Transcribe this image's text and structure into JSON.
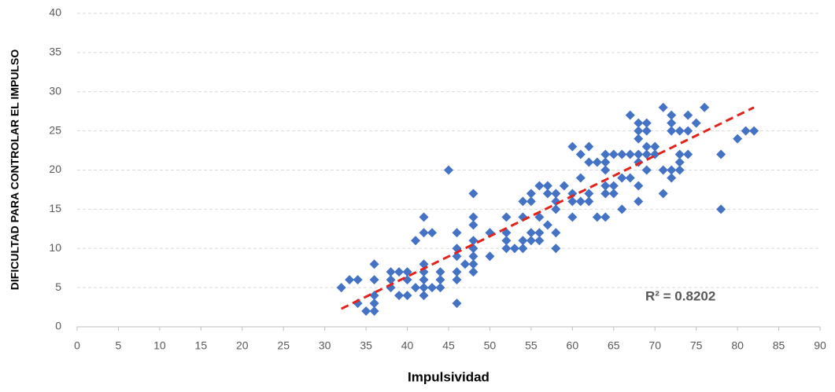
{
  "chart_data": {
    "type": "scatter",
    "x_label": "Impulsividad",
    "y_label": "DIFICULTAD PARA CONTROLAR EL IMPULSO",
    "annotation": "R² = 0.8202",
    "xlim": [
      0,
      90
    ],
    "xticks": [
      0,
      5,
      10,
      15,
      20,
      25,
      30,
      35,
      40,
      45,
      50,
      55,
      60,
      65,
      70,
      75,
      80,
      85,
      90
    ],
    "ylim": [
      0,
      40
    ],
    "yticks": [
      0,
      5,
      10,
      15,
      20,
      25,
      30,
      35,
      40
    ],
    "grid": true,
    "series": [
      {
        "color": "#4472c4",
        "x": [
          32,
          33,
          34,
          34,
          35,
          36,
          36,
          36,
          36,
          36,
          38,
          38,
          38,
          39,
          39,
          40,
          40,
          40,
          41,
          41,
          42,
          42,
          42,
          42,
          42,
          42,
          42,
          43,
          43,
          44,
          44,
          44,
          45,
          46,
          46,
          46,
          46,
          46,
          46,
          47,
          48,
          48,
          48,
          48,
          48,
          48,
          48,
          48,
          50,
          50,
          52,
          52,
          52,
          52,
          53,
          54,
          54,
          54,
          54,
          55,
          55,
          55,
          55,
          56,
          56,
          56,
          56,
          57,
          57,
          57,
          58,
          58,
          58,
          58,
          58,
          59,
          60,
          60,
          60,
          60,
          61,
          61,
          61,
          62,
          62,
          62,
          62,
          63,
          63,
          64,
          64,
          64,
          64,
          64,
          64,
          65,
          65,
          65,
          66,
          66,
          66,
          67,
          67,
          67,
          68,
          68,
          68,
          68,
          68,
          68,
          68,
          69,
          69,
          69,
          69,
          69,
          70,
          70,
          71,
          71,
          71,
          72,
          72,
          72,
          72,
          72,
          73,
          73,
          73,
          73,
          74,
          74,
          74,
          75,
          76,
          78,
          78,
          80,
          81,
          82
        ],
        "values": [
          5,
          6,
          6,
          3,
          2,
          8,
          6,
          4,
          3,
          2,
          7,
          6,
          5,
          7,
          4,
          7,
          6,
          4,
          11,
          5,
          14,
          12,
          8,
          7,
          6,
          5,
          4,
          12,
          5,
          7,
          6,
          5,
          20,
          12,
          10,
          9,
          7,
          6,
          3,
          8,
          17,
          14,
          13,
          11,
          10,
          9,
          8,
          7,
          12,
          9,
          14,
          12,
          11,
          10,
          10,
          16,
          14,
          11,
          10,
          17,
          16,
          12,
          11,
          18,
          14,
          12,
          11,
          18,
          17,
          13,
          17,
          16,
          15,
          12,
          10,
          18,
          23,
          17,
          16,
          14,
          22,
          19,
          16,
          23,
          21,
          17,
          16,
          21,
          14,
          22,
          21,
          20,
          18,
          17,
          14,
          22,
          18,
          17,
          22,
          19,
          15,
          27,
          22,
          19,
          26,
          25,
          24,
          22,
          21,
          18,
          16,
          26,
          25,
          23,
          22,
          20,
          23,
          22,
          28,
          20,
          17,
          27,
          26,
          25,
          20,
          19,
          25,
          22,
          21,
          20,
          27,
          25,
          22,
          26,
          28,
          22,
          15,
          24,
          25,
          25
        ]
      }
    ],
    "trendline": {
      "color": "#e3231b",
      "x": [
        32,
        82
      ],
      "values": [
        2.3,
        28
      ]
    }
  }
}
